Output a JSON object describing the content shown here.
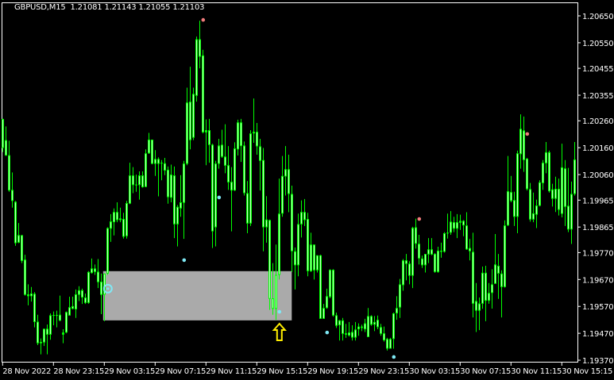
{
  "header": {
    "symbol": "GBPUSD,M15",
    "open": "1.21081",
    "high": "1.21143",
    "low": "1.21055",
    "close": "1.21103"
  },
  "colors": {
    "background": "#000000",
    "candle": "#00ff00",
    "frame": "#ffffff",
    "zone": "#aaaaaa",
    "dot_up": "#7fe9f5",
    "dot_down": "#f27c7c",
    "arrow": "#ffee00"
  },
  "chart_data": {
    "type": "candlestick",
    "symbol": "GBPUSD",
    "timeframe": "M15",
    "ylim": [
      1.1936,
      1.2072
    ],
    "grid": false,
    "price_ticks": [
      "1.20650",
      "1.20550",
      "1.20455",
      "1.20355",
      "1.20260",
      "1.20160",
      "1.20060",
      "1.19965",
      "1.19865",
      "1.19770",
      "1.19670",
      "1.19570",
      "1.19470",
      "1.19370"
    ],
    "time_labels": [
      {
        "bar": 0,
        "label": "28 Nov 2022"
      },
      {
        "bar": 16,
        "label": "28 Nov 23:15"
      },
      {
        "bar": 32,
        "label": "29 Nov 03:15"
      },
      {
        "bar": 48,
        "label": "29 Nov 07:15"
      },
      {
        "bar": 64,
        "label": "29 Nov 11:15"
      },
      {
        "bar": 80,
        "label": "29 Nov 15:15"
      },
      {
        "bar": 96,
        "label": "29 Nov 19:15"
      },
      {
        "bar": 112,
        "label": "29 Nov 23:15"
      },
      {
        "bar": 128,
        "label": "30 Nov 03:15"
      },
      {
        "bar": 144,
        "label": "30 Nov 07:15"
      },
      {
        "bar": 160,
        "label": "30 Nov 11:15"
      },
      {
        "bar": 176,
        "label": "30 Nov 15:15"
      }
    ],
    "ohlc_columns": [
      "open",
      "high",
      "low",
      "close"
    ],
    "candles": [
      [
        1.20267,
        1.20267,
        1.20144,
        1.20159
      ],
      [
        1.20188,
        1.20239,
        1.20129,
        1.20131
      ],
      [
        1.20132,
        1.20186,
        1.19996,
        1.20001
      ],
      [
        1.20003,
        1.20068,
        1.19937,
        1.19962
      ],
      [
        1.19959,
        1.19962,
        1.19795,
        1.19805
      ],
      [
        1.19807,
        1.1988,
        1.19805,
        1.19835
      ],
      [
        1.19835,
        1.19835,
        1.19731,
        1.19739
      ],
      [
        1.19744,
        1.19762,
        1.1961,
        1.19613
      ],
      [
        1.19615,
        1.19652,
        1.19574,
        1.19608
      ],
      [
        1.19608,
        1.19642,
        1.19588,
        1.19618
      ],
      [
        1.19617,
        1.19623,
        1.19492,
        1.19512
      ],
      [
        1.19513,
        1.19539,
        1.19426,
        1.19433
      ],
      [
        1.19433,
        1.19451,
        1.19392,
        1.19438
      ],
      [
        1.19436,
        1.19487,
        1.19423,
        1.19487
      ],
      [
        1.19487,
        1.19503,
        1.19392,
        1.19465
      ],
      [
        1.19465,
        1.19544,
        1.19446,
        1.19537
      ],
      [
        1.19537,
        1.19551,
        1.195,
        1.19538
      ],
      [
        1.19538,
        1.19554,
        1.19492,
        1.19536
      ],
      [
        1.19539,
        1.1961,
        1.19515,
        1.19517
      ],
      [
        1.19473,
        1.19485,
        1.19433,
        1.19465
      ],
      [
        1.19473,
        1.19551,
        1.1947,
        1.19549
      ],
      [
        1.19536,
        1.19606,
        1.19536,
        1.19567
      ],
      [
        1.19561,
        1.19606,
        1.19559,
        1.19571
      ],
      [
        1.19559,
        1.19633,
        1.19527,
        1.19615
      ],
      [
        1.19613,
        1.19645,
        1.1959,
        1.1963
      ],
      [
        1.1963,
        1.19636,
        1.19579,
        1.19603
      ],
      [
        1.19603,
        1.19618,
        1.19579,
        1.19583
      ],
      [
        1.19583,
        1.19701,
        1.1958,
        1.19698
      ],
      [
        1.19694,
        1.19748,
        1.19692,
        1.19711
      ],
      [
        1.19711,
        1.19726,
        1.19687,
        1.19698
      ],
      [
        1.19699,
        1.19746,
        1.19638,
        1.1966
      ],
      [
        1.19662,
        1.19692,
        1.19541,
        1.19613
      ],
      [
        1.19613,
        1.19692,
        1.19515,
        1.19692
      ],
      [
        1.19692,
        1.19864,
        1.19687,
        1.19861
      ],
      [
        1.19859,
        1.19913,
        1.1981,
        1.19886
      ],
      [
        1.19883,
        1.19934,
        1.19834,
        1.19921
      ],
      [
        1.19921,
        1.19957,
        1.19883,
        1.19891
      ],
      [
        1.19891,
        1.19937,
        1.19883,
        1.19897
      ],
      [
        1.19895,
        1.19918,
        1.19822,
        1.19829
      ],
      [
        1.19831,
        1.19962,
        1.19822,
        1.19954
      ],
      [
        1.19952,
        1.20104,
        1.1995,
        1.20057
      ],
      [
        1.20057,
        1.20088,
        1.19991,
        1.20021
      ],
      [
        1.20021,
        1.2006,
        1.19996,
        1.20023
      ],
      [
        1.20021,
        1.20072,
        1.19967,
        1.20057
      ],
      [
        1.20057,
        1.20072,
        1.20011,
        1.20013
      ],
      [
        1.20014,
        1.20154,
        1.20013,
        1.20139
      ],
      [
        1.20139,
        1.20215,
        1.20137,
        1.2019
      ],
      [
        1.2019,
        1.2019,
        1.20098,
        1.201
      ],
      [
        1.201,
        1.20151,
        1.20055,
        1.20118
      ],
      [
        1.20118,
        1.20124,
        1.19979,
        1.201
      ],
      [
        1.20104,
        1.20114,
        1.20039,
        1.20102
      ],
      [
        1.20102,
        1.20122,
        1.20058,
        1.20075
      ],
      [
        1.20078,
        1.2009,
        1.19952,
        1.19976
      ],
      [
        1.19974,
        1.20097,
        1.19957,
        1.2006
      ],
      [
        1.20057,
        1.2009,
        1.19824,
        1.19875
      ],
      [
        1.19875,
        1.19947,
        1.19793,
        1.1994
      ],
      [
        1.19934,
        1.20058,
        1.19903,
        1.19957
      ],
      [
        1.19955,
        1.20111,
        1.19821,
        1.20101
      ],
      [
        1.201,
        1.20383,
        1.20095,
        1.20328
      ],
      [
        1.20331,
        1.20461,
        1.20154,
        1.20188
      ],
      [
        1.20197,
        1.20383,
        1.20188,
        1.2036
      ],
      [
        1.20353,
        1.20573,
        1.20331,
        1.20563
      ],
      [
        1.20563,
        1.20632,
        1.20455,
        1.20498
      ],
      [
        1.20503,
        1.20524,
        1.20213,
        1.20217
      ],
      [
        1.20217,
        1.20265,
        1.20095,
        1.20225
      ],
      [
        1.20225,
        1.20267,
        1.20104,
        1.2017
      ],
      [
        1.20171,
        1.20175,
        1.19787,
        1.19849
      ],
      [
        1.19864,
        1.20111,
        1.19793,
        1.20101
      ],
      [
        1.201,
        1.20193,
        1.20082,
        1.20168
      ],
      [
        1.20171,
        1.20227,
        1.20122,
        1.20126
      ],
      [
        1.20127,
        1.20247,
        1.20065,
        1.20093
      ],
      [
        1.20095,
        1.20166,
        1.20003,
        1.20031
      ],
      [
        1.20033,
        1.20088,
        1.19849,
        1.20001
      ],
      [
        1.20001,
        1.2018,
        1.19999,
        1.20157
      ],
      [
        1.20154,
        1.20264,
        1.20131,
        1.20254
      ],
      [
        1.20254,
        1.20267,
        1.20107,
        1.20166
      ],
      [
        1.20168,
        1.20183,
        1.19982,
        1.19991
      ],
      [
        1.19991,
        1.20036,
        1.19842,
        1.19878
      ],
      [
        1.19878,
        1.20225,
        1.19869,
        1.20213
      ],
      [
        1.20213,
        1.20343,
        1.20178,
        1.20219
      ],
      [
        1.20219,
        1.20252,
        1.20134,
        1.20165
      ],
      [
        1.20165,
        1.20193,
        1.20001,
        1.20111
      ],
      [
        1.20114,
        1.20159,
        1.19775,
        1.19864
      ],
      [
        1.19864,
        1.1998,
        1.19807,
        1.19893
      ],
      [
        1.19891,
        1.19893,
        1.19557,
        1.19598
      ],
      [
        1.196,
        1.19731,
        1.19539,
        1.19561
      ],
      [
        1.19561,
        1.198,
        1.1952,
        1.19687
      ],
      [
        1.19687,
        1.20045,
        1.1967,
        1.19915
      ],
      [
        1.19915,
        1.20129,
        1.19903,
        1.20055
      ],
      [
        1.20053,
        1.20166,
        1.19982,
        1.2008
      ],
      [
        1.2008,
        1.20134,
        1.1992,
        1.19988
      ],
      [
        1.19988,
        1.20019,
        1.19698,
        1.19775
      ],
      [
        1.19775,
        1.19789,
        1.19633,
        1.19723
      ],
      [
        1.19723,
        1.19915,
        1.19682,
        1.19876
      ],
      [
        1.19875,
        1.19964,
        1.19826,
        1.19921
      ],
      [
        1.19921,
        1.19969,
        1.19869,
        1.19891
      ],
      [
        1.19895,
        1.19918,
        1.19682,
        1.19701
      ],
      [
        1.19701,
        1.19844,
        1.19698,
        1.198
      ],
      [
        1.198,
        1.198,
        1.1967,
        1.19704
      ],
      [
        1.19704,
        1.1976,
        1.19696,
        1.1976
      ],
      [
        1.1976,
        1.19762,
        1.19524,
        1.19524
      ],
      [
        1.19524,
        1.19579,
        1.19524,
        1.19564
      ],
      [
        1.19564,
        1.19636,
        1.19561,
        1.19608
      ],
      [
        1.19605,
        1.19708,
        1.196,
        1.19706
      ],
      [
        1.19706,
        1.19708,
        1.19532,
        1.19536
      ],
      [
        1.19537,
        1.19547,
        1.1949,
        1.19498
      ],
      [
        1.195,
        1.1952,
        1.19443,
        1.19518
      ],
      [
        1.19518,
        1.19527,
        1.19443,
        1.19468
      ],
      [
        1.1947,
        1.19505,
        1.19453,
        1.19465
      ],
      [
        1.19462,
        1.19512,
        1.19458,
        1.19473
      ],
      [
        1.19475,
        1.195,
        1.19443,
        1.19454
      ],
      [
        1.19454,
        1.19512,
        1.19443,
        1.19484
      ],
      [
        1.19485,
        1.19507,
        1.19461,
        1.19495
      ],
      [
        1.19495,
        1.19502,
        1.19478,
        1.1949
      ],
      [
        1.19485,
        1.19524,
        1.19475,
        1.19507
      ],
      [
        1.19456,
        1.19564,
        1.19456,
        1.19534
      ],
      [
        1.19534,
        1.19537,
        1.19498,
        1.19502
      ],
      [
        1.19502,
        1.19534,
        1.19478,
        1.19512
      ],
      [
        1.1952,
        1.19536,
        1.19485,
        1.19493
      ],
      [
        1.19493,
        1.19505,
        1.19461,
        1.19468
      ],
      [
        1.1947,
        1.19495,
        1.19439,
        1.19444
      ],
      [
        1.19449,
        1.19453,
        1.19406,
        1.19413
      ],
      [
        1.19413,
        1.19453,
        1.19413,
        1.19449
      ],
      [
        1.19449,
        1.19547,
        1.19413,
        1.19544
      ],
      [
        1.19544,
        1.19608,
        1.1952,
        1.19564
      ],
      [
        1.19566,
        1.19672,
        1.19527,
        1.19652
      ],
      [
        1.19649,
        1.19746,
        1.19628,
        1.19741
      ],
      [
        1.19741,
        1.19765,
        1.19667,
        1.19728
      ],
      [
        1.19729,
        1.19738,
        1.19652,
        1.19684
      ],
      [
        1.19684,
        1.19866,
        1.19638,
        1.19862
      ],
      [
        1.19864,
        1.19896,
        1.19785,
        1.19803
      ],
      [
        1.19803,
        1.19836,
        1.19726,
        1.19748
      ],
      [
        1.19748,
        1.19759,
        1.19713,
        1.19723
      ],
      [
        1.19723,
        1.19765,
        1.19696,
        1.19765
      ],
      [
        1.19763,
        1.19824,
        1.19731,
        1.19782
      ],
      [
        1.19782,
        1.19824,
        1.1976,
        1.19763
      ],
      [
        1.19765,
        1.19768,
        1.19695,
        1.19698
      ],
      [
        1.19698,
        1.19792,
        1.19695,
        1.19777
      ],
      [
        1.19777,
        1.19807,
        1.19751,
        1.19773
      ],
      [
        1.19773,
        1.19846,
        1.1977,
        1.19842
      ],
      [
        1.19841,
        1.19915,
        1.19822,
        1.19844
      ],
      [
        1.19844,
        1.19924,
        1.19836,
        1.19885
      ],
      [
        1.19883,
        1.19903,
        1.19846,
        1.19859
      ],
      [
        1.19859,
        1.19913,
        1.19824,
        1.19883
      ],
      [
        1.19881,
        1.19911,
        1.19854,
        1.19888
      ],
      [
        1.19888,
        1.19891,
        1.19831,
        1.19871
      ],
      [
        1.19871,
        1.1992,
        1.1978,
        1.19782
      ],
      [
        1.19787,
        1.19821,
        1.19741,
        1.19775
      ],
      [
        1.19773,
        1.19844,
        1.19529,
        1.1958
      ],
      [
        1.1959,
        1.19657,
        1.19475,
        1.19554
      ],
      [
        1.19554,
        1.19603,
        1.19482,
        1.19581
      ],
      [
        1.1958,
        1.19718,
        1.19561,
        1.19695
      ],
      [
        1.19695,
        1.19721,
        1.19515,
        1.19591
      ],
      [
        1.19591,
        1.19657,
        1.1958,
        1.1962
      ],
      [
        1.1962,
        1.19708,
        1.19562,
        1.19652
      ],
      [
        1.19654,
        1.19839,
        1.19654,
        1.19726
      ],
      [
        1.19721,
        1.19765,
        1.19598,
        1.19692
      ],
      [
        1.19692,
        1.19704,
        1.19529,
        1.19642
      ],
      [
        1.19642,
        1.1989,
        1.1964,
        1.19871
      ],
      [
        1.19871,
        1.20129,
        1.19869,
        1.19998
      ],
      [
        1.19995,
        1.20055,
        1.19957,
        1.19962
      ],
      [
        1.19965,
        1.19996,
        1.19869,
        1.19903
      ],
      [
        1.19903,
        1.20149,
        1.19842,
        1.20139
      ],
      [
        1.20136,
        1.20284,
        1.20082,
        1.2023
      ],
      [
        1.20224,
        1.20276,
        1.2007,
        1.20114
      ],
      [
        1.20119,
        1.20122,
        1.20001,
        1.20006
      ],
      [
        1.20006,
        1.20029,
        1.19885,
        1.19893
      ],
      [
        1.19893,
        1.19993,
        1.19883,
        1.19916
      ],
      [
        1.19911,
        1.19967,
        1.19861,
        1.19945
      ],
      [
        1.19944,
        1.20039,
        1.19942,
        1.20031
      ],
      [
        1.20028,
        1.20114,
        1.20003,
        1.20104
      ],
      [
        1.20102,
        1.20181,
        1.20065,
        1.20143
      ],
      [
        1.20143,
        1.20149,
        1.19993,
        1.19998
      ],
      [
        1.20005,
        1.20026,
        1.19941,
        1.1997
      ],
      [
        1.1997,
        1.20052,
        1.19921,
        1.20007
      ],
      [
        1.20007,
        1.20045,
        1.19908,
        1.19929
      ],
      [
        1.19914,
        1.20175,
        1.19901,
        1.20087
      ],
      [
        1.20083,
        1.20114,
        1.19869,
        1.1994
      ],
      [
        1.19944,
        1.20085,
        1.19846,
        1.19856
      ],
      [
        1.19856,
        1.20034,
        1.19802,
        1.19988
      ],
      [
        1.19988,
        1.20181,
        1.19982,
        1.20116
      ]
    ],
    "zone": {
      "from_bar": 32,
      "to_bar": 91,
      "price_top": 1.19701,
      "price_bottom": 1.19518
    },
    "signal_ring": {
      "bar": 33,
      "price": 1.19636
    },
    "up_dots": [
      {
        "bar": 57,
        "price": 1.19742
      },
      {
        "bar": 68,
        "price": 1.19975
      },
      {
        "bar": 87,
        "price": 1.1955
      },
      {
        "bar": 102,
        "price": 1.19473
      },
      {
        "bar": 123,
        "price": 1.19382
      }
    ],
    "down_dots": [
      {
        "bar": 63,
        "price": 1.20635
      },
      {
        "bar": 131,
        "price": 1.19895
      },
      {
        "bar": 165,
        "price": 1.20211
      }
    ],
    "arrow": {
      "bar": 87,
      "direction": "up",
      "icon": "arrow-up-icon"
    }
  }
}
